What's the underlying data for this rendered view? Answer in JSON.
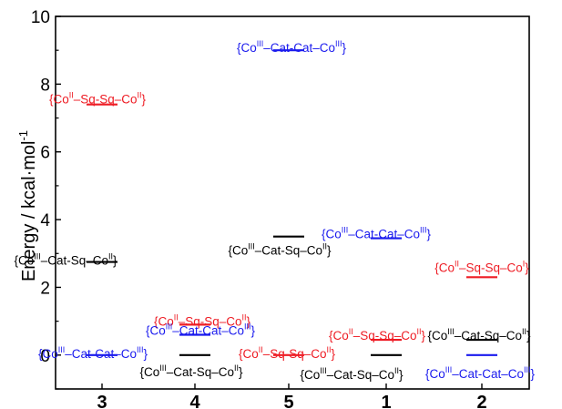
{
  "chart_data": {
    "type": "scatter",
    "title": "",
    "xlabel": "",
    "ylabel": "Energy / kcal·mol",
    "ylabel_superscript": "-1",
    "ylim": [
      -1,
      10
    ],
    "yticks": [
      0,
      2,
      4,
      6,
      8,
      10
    ],
    "grid": false,
    "categories": [
      "3",
      "4",
      "5",
      "1",
      "2"
    ],
    "colors": {
      "black": "#000000",
      "red": "#ee1c24",
      "blue": "#1a1aee"
    },
    "levels": [
      {
        "category": "3",
        "energy": 7.4,
        "color": "red",
        "label": {
          "a": "{Co",
          "b": "II",
          "c": "–Sq-Sq–Co",
          "d": "II",
          "e": "}"
        }
      },
      {
        "category": "3",
        "energy": 2.75,
        "color": "black",
        "label": {
          "a": "{Co",
          "b": "III",
          "c": "–Cat-Sq–Co",
          "d": "II",
          "e": "}"
        }
      },
      {
        "category": "3",
        "energy": 0.0,
        "color": "blue",
        "label": {
          "a": "{Co",
          "b": "III",
          "c": "–Cat-Cat–Co",
          "d": "III",
          "e": "}"
        }
      },
      {
        "category": "4",
        "energy": 0.9,
        "color": "red",
        "label": {
          "a": "{Co",
          "b": "II",
          "c": "–Sq-Sq–Co",
          "d": "II",
          "e": "}"
        }
      },
      {
        "category": "4",
        "energy": 0.6,
        "color": "blue",
        "label": {
          "a": "{Co",
          "b": "III",
          "c": "–Cat-Cat–Co",
          "d": "III",
          "e": "}"
        }
      },
      {
        "category": "4",
        "energy": 0.0,
        "color": "black",
        "label": {
          "a": "{Co",
          "b": "III",
          "c": "–Cat-Sq–Co",
          "d": "II",
          "e": "}"
        }
      },
      {
        "category": "5",
        "energy": 9.0,
        "color": "blue",
        "label": {
          "a": "{Co",
          "b": "III",
          "c": "–Cat-Cat–Co",
          "d": "III",
          "e": "}"
        }
      },
      {
        "category": "5",
        "energy": 3.5,
        "color": "black",
        "label": {
          "a": "{Co",
          "b": "III",
          "c": "–Cat-Sq–Co",
          "d": "II",
          "e": "}"
        }
      },
      {
        "category": "5",
        "energy": 0.0,
        "color": "red",
        "label": {
          "a": "{Co",
          "b": "II",
          "c": "–Sq-Sq–Co",
          "d": "II",
          "e": "}"
        }
      },
      {
        "category": "1",
        "energy": 3.45,
        "color": "blue",
        "label": {
          "a": "{Co",
          "b": "III",
          "c": "–Cat-Cat–Co",
          "d": "III",
          "e": "}"
        }
      },
      {
        "category": "1",
        "energy": 0.45,
        "color": "red",
        "label": {
          "a": "{Co",
          "b": "II",
          "c": "–Sq-Sq–Co",
          "d": "II",
          "e": "}"
        }
      },
      {
        "category": "1",
        "energy": 0.0,
        "color": "black",
        "label": {
          "a": "{Co",
          "b": "III",
          "c": "–Cat-Sq–Co",
          "d": "II",
          "e": "}"
        }
      },
      {
        "category": "2",
        "energy": 2.3,
        "color": "red",
        "label": {
          "a": "{Co",
          "b": "II",
          "c": "–Sq-Sq–Co",
          "d": "I",
          "e": "}"
        }
      },
      {
        "category": "2",
        "energy": 0.45,
        "color": "black",
        "label": {
          "a": "{Co",
          "b": "III",
          "c": "–Cat-Sq–Co",
          "d": "II",
          "e": "}"
        }
      },
      {
        "category": "2",
        "energy": 0.0,
        "color": "blue",
        "label": {
          "a": "{Co",
          "b": "III",
          "c": "–Cat-Cat–Co",
          "d": "III",
          "e": "}"
        }
      }
    ]
  }
}
